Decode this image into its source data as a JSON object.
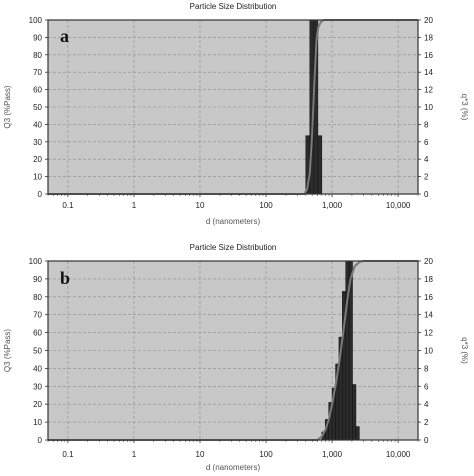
{
  "colors": {
    "plot_background": "#c8c8c8",
    "grid": "#8c8c8c",
    "bar_fill": "#2b2b2b",
    "bar_stroke": "#111111",
    "cumulative_line": "#7a7a7a",
    "axis": "#333333"
  },
  "chart_data": [
    {
      "type": "bar",
      "title": "Particle Size Distribution",
      "panel_label": "a",
      "xlabel": "d (nanometers)",
      "ylabel": "Q3 (%Pass)",
      "y2label": "q*3 (%)",
      "x_scale": "log",
      "xlim": [
        0.05,
        20000
      ],
      "ylim": [
        0,
        100
      ],
      "y2lim": [
        0,
        20
      ],
      "x_ticks": [
        0.1,
        1,
        10,
        100,
        1000,
        10000
      ],
      "x_tick_labels": [
        "0.1",
        "1",
        "10",
        "100",
        "1,000",
        "10,000"
      ],
      "y_ticks": [
        0,
        10,
        20,
        30,
        40,
        50,
        60,
        70,
        80,
        90,
        100
      ],
      "y2_ticks": [
        0,
        2,
        4,
        6,
        8,
        10,
        12,
        14,
        16,
        18,
        20
      ],
      "grid": true,
      "bars_q3": {
        "name": "q*3 (%)",
        "x_lower": [
          400,
          460,
          530,
          610
        ],
        "x_upper": [
          460,
          530,
          610,
          700
        ],
        "values": [
          6.7,
          20,
          20,
          6.7
        ]
      },
      "cumulative_Q3": {
        "name": "Q3 (%Pass)",
        "x": [
          0.05,
          380,
          420,
          460,
          500,
          540,
          580,
          620,
          680,
          750,
          20000
        ],
        "y": [
          0,
          0,
          3,
          12,
          35,
          65,
          88,
          96,
          99,
          100,
          100
        ]
      }
    },
    {
      "type": "bar",
      "title": "Particle Size Distribution",
      "panel_label": "b",
      "xlabel": "d (nanometers)",
      "ylabel": "Q3 (%Pass)",
      "y2label": "q*3 (%)",
      "x_scale": "log",
      "xlim": [
        0.05,
        20000
      ],
      "ylim": [
        0,
        100
      ],
      "y2lim": [
        0,
        20
      ],
      "x_ticks": [
        0.1,
        1,
        10,
        100,
        1000,
        10000
      ],
      "x_tick_labels": [
        "0.1",
        "1",
        "10",
        "100",
        "1,000",
        "10,000"
      ],
      "y_ticks": [
        0,
        10,
        20,
        30,
        40,
        50,
        60,
        70,
        80,
        90,
        100
      ],
      "y2_ticks": [
        0,
        2,
        4,
        6,
        8,
        10,
        12,
        14,
        16,
        18,
        20
      ],
      "grid": true,
      "bars_q3": {
        "name": "q*3 (%)",
        "x_lower": [
          700,
          790,
          890,
          1000,
          1130,
          1270,
          1430,
          1610,
          1810,
          2040,
          2300
        ],
        "x_upper": [
          790,
          890,
          1000,
          1130,
          1270,
          1430,
          1610,
          1810,
          2040,
          2300,
          2590
        ],
        "values": [
          0.9,
          2.3,
          4.2,
          5.8,
          8.5,
          11.5,
          16.6,
          20,
          20,
          6.2,
          1.5
        ]
      },
      "cumulative_Q3": {
        "name": "Q3 (%Pass)",
        "x": [
          0.05,
          600,
          700,
          800,
          900,
          1000,
          1150,
          1300,
          1500,
          1700,
          1900,
          2200,
          2600,
          3000,
          20000
        ],
        "y": [
          0,
          0,
          2,
          6,
          12,
          20,
          32,
          45,
          62,
          78,
          90,
          97,
          99.5,
          100,
          100
        ]
      }
    }
  ]
}
